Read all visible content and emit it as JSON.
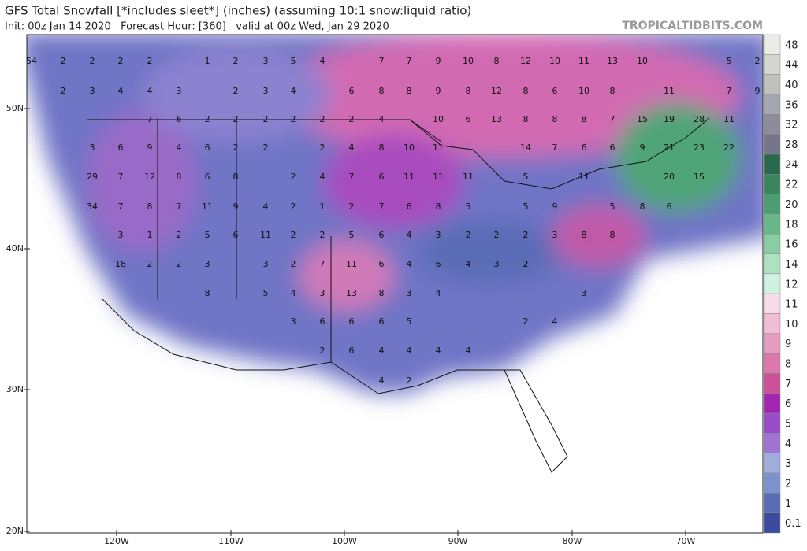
{
  "header": {
    "title": "GFS Total Snowfall [*includes sleet*] (inches) (assuming 10:1 snow:liquid ratio)",
    "subtitle": "Init: 00z Jan 14 2020   Forecast Hour: [360]   valid at 00z Wed, Jan 29 2020",
    "brand": "TROPICALTIDBITS.COM"
  },
  "map": {
    "lat_labels": [
      "50N",
      "40N",
      "30N",
      "20N"
    ],
    "lon_labels": [
      "120W",
      "110W",
      "100W",
      "90W",
      "80W",
      "70W"
    ],
    "labels": [
      [
        54,
        2,
        2,
        2,
        2,
        1,
        2,
        3,
        5,
        4,
        7,
        7,
        9,
        10,
        8,
        12,
        10,
        11,
        13,
        10,
        5,
        2
      ],
      [
        2,
        3,
        4,
        4,
        3,
        2,
        3,
        4,
        6,
        8,
        8,
        9,
        8,
        12,
        8,
        6,
        10,
        8,
        11,
        7,
        9
      ],
      [
        7,
        6,
        2,
        2,
        2,
        2,
        2,
        2,
        4,
        10,
        6,
        13,
        8,
        8,
        8,
        7,
        15,
        19,
        28,
        11
      ],
      [
        3,
        6,
        9,
        4,
        6,
        2,
        2,
        2,
        4,
        8,
        10,
        11,
        14,
        7,
        6,
        6,
        9,
        21,
        23,
        22
      ],
      [
        29,
        7,
        12,
        8,
        6,
        8,
        2,
        4,
        7,
        6,
        11,
        11,
        11,
        5,
        11,
        20,
        15
      ],
      [
        34,
        7,
        8,
        7,
        11,
        9,
        4,
        2,
        1,
        2,
        7,
        6,
        8,
        5,
        5,
        9,
        5,
        8,
        6
      ],
      [
        3,
        1,
        2,
        5,
        6,
        11,
        2,
        2,
        5,
        6,
        4,
        3,
        2,
        2,
        2,
        3,
        8,
        8
      ],
      [
        18,
        2,
        2,
        3,
        3,
        2,
        7,
        11,
        6,
        4,
        6,
        4,
        3,
        2
      ],
      [
        8,
        5,
        4,
        3,
        13,
        8,
        3,
        4,
        3
      ],
      [
        3,
        6,
        6,
        6,
        5,
        2,
        4
      ],
      [
        2,
        6,
        4,
        4,
        4,
        4
      ],
      [
        4,
        2
      ]
    ]
  },
  "legend": {
    "values": [
      48,
      44,
      40,
      36,
      32,
      28,
      24,
      22,
      20,
      18,
      16,
      14,
      12,
      11,
      10,
      9,
      8,
      7,
      6,
      5,
      4,
      3,
      2,
      1,
      0.1
    ],
    "colors": [
      "#ecece6",
      "#d6d6d0",
      "#c0c0bc",
      "#a6a6b0",
      "#8c8c9c",
      "#74748a",
      "#2a6a4c",
      "#3a845e",
      "#4c9e72",
      "#68b88a",
      "#88cea2",
      "#ace2c0",
      "#d2f2e0",
      "#f8dcea",
      "#f0bcd6",
      "#e89cc2",
      "#dc78ae",
      "#cc509a",
      "#a424b2",
      "#984cc8",
      "#a074d2",
      "#a0acdc",
      "#7c92cc",
      "#5a6cb6",
      "#3c4aa0"
    ]
  }
}
